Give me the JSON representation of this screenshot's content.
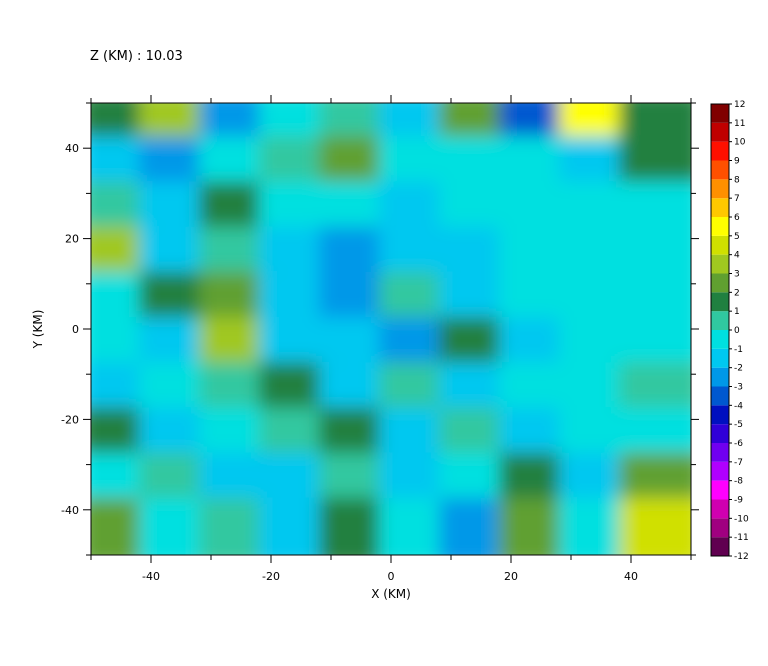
{
  "chart_data": {
    "type": "contour",
    "title": "Z (KM) : 10.03",
    "x_label": "X (KM)",
    "y_label": "Y (KM)",
    "xlim": [
      -50,
      50
    ],
    "ylim": [
      -50,
      50
    ],
    "xticks": [
      -40,
      -20,
      0,
      20,
      40
    ],
    "yticks": [
      -40,
      -20,
      0,
      20,
      40
    ],
    "xminorticks": [
      -50,
      -30,
      -10,
      10,
      30,
      50
    ],
    "yminorticks": [
      -50,
      -30,
      -10,
      10,
      30,
      50
    ],
    "z": [
      [
        1,
        3,
        -3,
        -0.5,
        0.5,
        -2,
        2,
        -4,
        5,
        1
      ],
      [
        -2,
        -3,
        -0.5,
        0.5,
        2,
        -0.5,
        -0.5,
        -0.5,
        -2,
        1
      ],
      [
        0.5,
        -2,
        1,
        -0.5,
        -0.5,
        -1.5,
        -0.5,
        -0.5,
        -0.5,
        -0.5
      ],
      [
        3,
        -1.5,
        0.5,
        -2,
        -3,
        -1.5,
        -2,
        -0.5,
        -0.5,
        -0.5
      ],
      [
        -0.5,
        1,
        2,
        -1.5,
        -3,
        0.5,
        -1.5,
        -0.5,
        -0.5,
        -0.5
      ],
      [
        -0.5,
        -2,
        3,
        -2,
        -1.5,
        -3,
        1,
        -1.5,
        -0.5,
        -0.5
      ],
      [
        -1.5,
        -0.5,
        0.5,
        1,
        -1.5,
        0.5,
        -2,
        -0.5,
        -0.5,
        0.5
      ],
      [
        1,
        -2,
        -0.5,
        0.5,
        1,
        -2,
        0.5,
        -1.5,
        -0.5,
        -0.5
      ],
      [
        -0.5,
        0.5,
        -1.5,
        -2,
        0.5,
        -1.5,
        -0.5,
        1,
        -2,
        2
      ],
      [
        2,
        -0.5,
        0.5,
        -1.5,
        1,
        -0.5,
        -3,
        2,
        -0.5,
        4
      ]
    ],
    "colorbar": {
      "levels": [
        -12,
        -11,
        -10,
        -9,
        -8,
        -7,
        -6,
        -5,
        -4,
        -3,
        -2,
        -1,
        0,
        1,
        2,
        3,
        4,
        5,
        6,
        7,
        8,
        9,
        10,
        11,
        12
      ],
      "colors": [
        "#600050",
        "#a00080",
        "#d000b0",
        "#ff00ff",
        "#b000ff",
        "#7000f0",
        "#3000d8",
        "#0010c0",
        "#0058d0",
        "#0098e8",
        "#00c8f0",
        "#00e0e0",
        "#30c8a0",
        "#208040",
        "#60a030",
        "#a0c820",
        "#d0e000",
        "#ffff00",
        "#ffc800",
        "#ff9000",
        "#ff5000",
        "#ff1000",
        "#c00000",
        "#800000"
      ]
    }
  }
}
